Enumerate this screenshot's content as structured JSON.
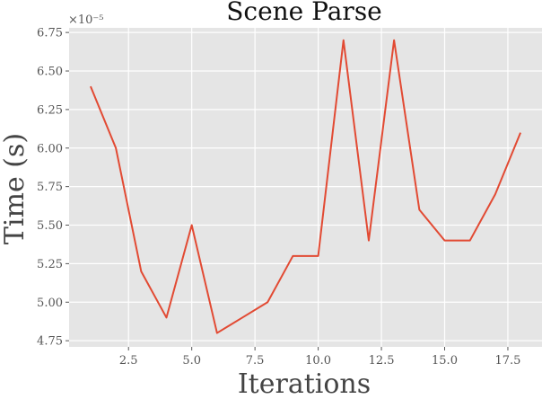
{
  "chart_data": {
    "type": "line",
    "title": "Scene Parse",
    "xlabel": "Iterations",
    "ylabel": "Time (s)",
    "y_offset_label": "×10⁻⁵",
    "grid": true,
    "xlim": [
      0.15,
      18.85
    ],
    "ylim": [
      4.71,
      6.78
    ],
    "xticks": [
      2.5,
      5.0,
      7.5,
      10.0,
      12.5,
      15.0,
      17.5
    ],
    "xtick_labels": [
      "2.5",
      "5.0",
      "7.5",
      "10.0",
      "12.5",
      "15.0",
      "17.5"
    ],
    "yticks": [
      4.75,
      5.0,
      5.25,
      5.5,
      5.75,
      6.0,
      6.25,
      6.5,
      6.75
    ],
    "ytick_labels": [
      "4.75",
      "5.00",
      "5.25",
      "5.50",
      "5.75",
      "6.00",
      "6.25",
      "6.50",
      "6.75"
    ],
    "series": [
      {
        "color": "#E24A33",
        "x": [
          1,
          2,
          3,
          4,
          5,
          6,
          7,
          8,
          9,
          10,
          11,
          12,
          13,
          14,
          15,
          16,
          17,
          18
        ],
        "y": [
          6.4,
          6.0,
          5.2,
          4.9,
          5.5,
          4.8,
          4.9,
          5.0,
          5.3,
          5.3,
          6.7,
          5.4,
          6.7,
          5.6,
          5.4,
          5.4,
          5.7,
          6.1
        ]
      }
    ]
  },
  "style": {
    "background": "#E5E5E5",
    "grid_color": "#FFFFFF"
  }
}
